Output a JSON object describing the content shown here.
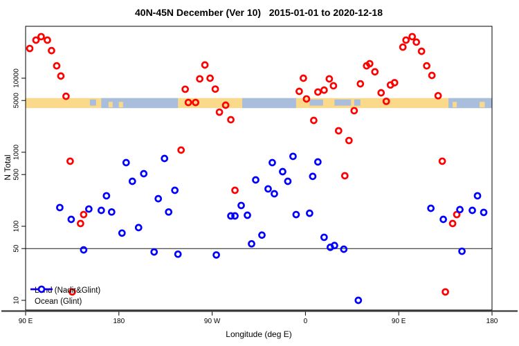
{
  "chart_data": {
    "type": "scatter",
    "title": "40N-45N December (Ver 10)   2015-01-01 to 2020-12-18",
    "xlabel": "Longitude (deg E)",
    "ylabel": "N Total",
    "grid": false,
    "legend_position": "bottom-left",
    "x_axis": {
      "min": 90,
      "max": 540,
      "ticks": [
        {
          "value": 90,
          "label": "90 E"
        },
        {
          "value": 180,
          "label": "180"
        },
        {
          "value": 270,
          "label": "90 W"
        },
        {
          "value": 360,
          "label": "0"
        },
        {
          "value": 450,
          "label": "90 E"
        },
        {
          "value": 540,
          "label": "180"
        }
      ]
    },
    "y_axis": {
      "scale": "log",
      "min": 7.5,
      "max": 50000,
      "ticks": [
        {
          "value": 10,
          "label": "10"
        },
        {
          "value": 50,
          "label": "50"
        },
        {
          "value": 100,
          "label": "100"
        },
        {
          "value": 500,
          "label": "500"
        },
        {
          "value": 1000,
          "label": "1000"
        },
        {
          "value": 5000,
          "label": "5000"
        },
        {
          "value": 10000,
          "label": "10000"
        }
      ]
    },
    "reference_line": {
      "y": 50,
      "color": "#1a1a1a"
    },
    "map_band": {
      "center": 5000,
      "land_color": "#FBD98A",
      "ocean_color": "#A9BEDC",
      "segments": [
        {
          "from": 90,
          "to": 540,
          "type": "land"
        },
        {
          "from": 163,
          "to": 237,
          "type": "ocean"
        },
        {
          "from": 170,
          "to": 174,
          "type": "island"
        },
        {
          "from": 180,
          "to": 184,
          "type": "island"
        },
        {
          "from": 299,
          "to": 351,
          "type": "ocean"
        },
        {
          "from": 498,
          "to": 540,
          "type": "ocean"
        },
        {
          "from": 502,
          "to": 506,
          "type": "island"
        },
        {
          "from": 528,
          "to": 533,
          "type": "island"
        },
        {
          "from": 152,
          "to": 158,
          "type": "sea"
        },
        {
          "from": 364,
          "to": 377,
          "type": "sea"
        },
        {
          "from": 388,
          "to": 404,
          "type": "sea"
        },
        {
          "from": 407,
          "to": 413,
          "type": "sea"
        }
      ]
    },
    "series": [
      {
        "name": "Land (Nadir&Glint)",
        "color": "#FF0000",
        "points": [
          [
            94,
            25200
          ],
          [
            100,
            32700
          ],
          [
            105,
            36400
          ],
          [
            111,
            32700
          ],
          [
            115,
            23600
          ],
          [
            120,
            14700
          ],
          [
            124,
            10700
          ],
          [
            129,
            5700
          ],
          [
            133,
            757
          ],
          [
            146,
            144
          ],
          [
            143,
            109
          ],
          [
            135,
            13
          ],
          [
            240,
            1070
          ],
          [
            244,
            7100
          ],
          [
            247,
            4700
          ],
          [
            254,
            4700
          ],
          [
            258,
            9800
          ],
          [
            263,
            15100
          ],
          [
            268,
            10000
          ],
          [
            273,
            7130
          ],
          [
            277,
            3480
          ],
          [
            283,
            4320
          ],
          [
            288,
            2750
          ],
          [
            292,
            306
          ],
          [
            354,
            6640
          ],
          [
            358,
            10000
          ],
          [
            361,
            5250
          ],
          [
            368,
            2690
          ],
          [
            372,
            6500
          ],
          [
            378,
            6900
          ],
          [
            383,
            9800
          ],
          [
            387,
            7900
          ],
          [
            392,
            1950
          ],
          [
            398,
            481
          ],
          [
            402,
            1440
          ],
          [
            407,
            3640
          ],
          [
            413,
            8400
          ],
          [
            419,
            14700
          ],
          [
            422,
            15700
          ],
          [
            427,
            12200
          ],
          [
            433,
            6350
          ],
          [
            438,
            4870
          ],
          [
            442,
            8100
          ],
          [
            446,
            8700
          ],
          [
            454,
            26300
          ],
          [
            457,
            32700
          ],
          [
            463,
            36400
          ],
          [
            467,
            30700
          ],
          [
            472,
            23100
          ],
          [
            477,
            14700
          ],
          [
            482,
            10900
          ],
          [
            488,
            5800
          ],
          [
            492,
            757
          ],
          [
            502,
            109
          ],
          [
            506,
            144
          ],
          [
            495,
            13
          ]
        ]
      },
      {
        "name": "Ocean (Glint)",
        "color": "#0000FF",
        "points": [
          [
            123,
            179
          ],
          [
            134,
            124
          ],
          [
            146,
            48
          ],
          [
            151,
            171
          ],
          [
            163,
            164
          ],
          [
            168,
            258
          ],
          [
            173,
            156
          ],
          [
            183,
            81
          ],
          [
            187,
            724
          ],
          [
            193,
            405
          ],
          [
            199,
            96
          ],
          [
            204,
            513
          ],
          [
            214,
            45
          ],
          [
            218,
            236
          ],
          [
            224,
            824
          ],
          [
            228,
            156
          ],
          [
            234,
            306
          ],
          [
            237,
            42
          ],
          [
            274,
            41
          ],
          [
            288,
            138
          ],
          [
            292,
            138
          ],
          [
            298,
            191
          ],
          [
            304,
            141
          ],
          [
            308,
            58
          ],
          [
            312,
            423
          ],
          [
            318,
            76
          ],
          [
            324,
            320
          ],
          [
            328,
            724
          ],
          [
            330,
            275
          ],
          [
            338,
            547
          ],
          [
            343,
            405
          ],
          [
            348,
            880
          ],
          [
            351,
            144
          ],
          [
            364,
            150
          ],
          [
            367,
            472
          ],
          [
            372,
            740
          ],
          [
            378,
            71
          ],
          [
            384,
            52
          ],
          [
            388,
            55
          ],
          [
            397,
            49
          ],
          [
            411,
            10
          ],
          [
            481,
            175
          ],
          [
            493,
            124
          ],
          [
            509,
            168
          ],
          [
            511,
            46
          ],
          [
            521,
            164
          ],
          [
            526,
            258
          ],
          [
            532,
            154
          ]
        ]
      }
    ]
  }
}
